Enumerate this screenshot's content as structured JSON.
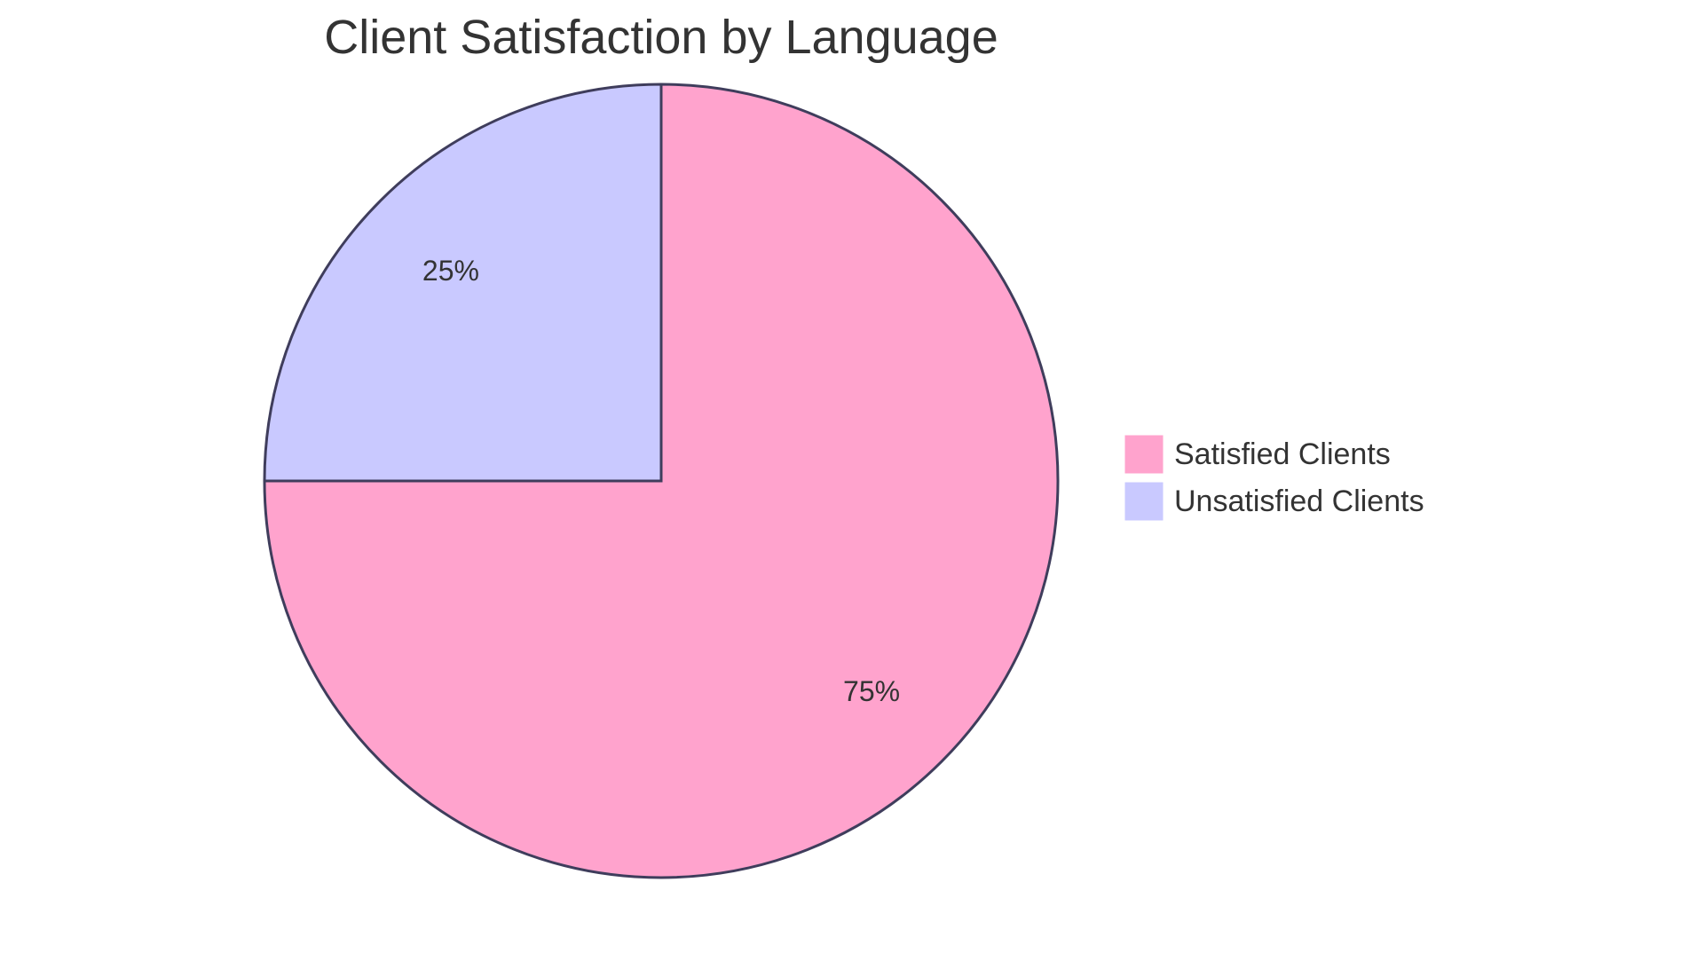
{
  "chart_data": {
    "type": "pie",
    "title": "Client Satisfaction by Language",
    "slices": [
      {
        "label": "Satisfied Clients",
        "value": 75,
        "display": "75%",
        "color": "#FFA3CD"
      },
      {
        "label": "Unsatisfied Clients",
        "value": 25,
        "display": "25%",
        "color": "#C9C9FF"
      }
    ],
    "stroke_color": "#3F3D5C",
    "legend_position": "right"
  }
}
